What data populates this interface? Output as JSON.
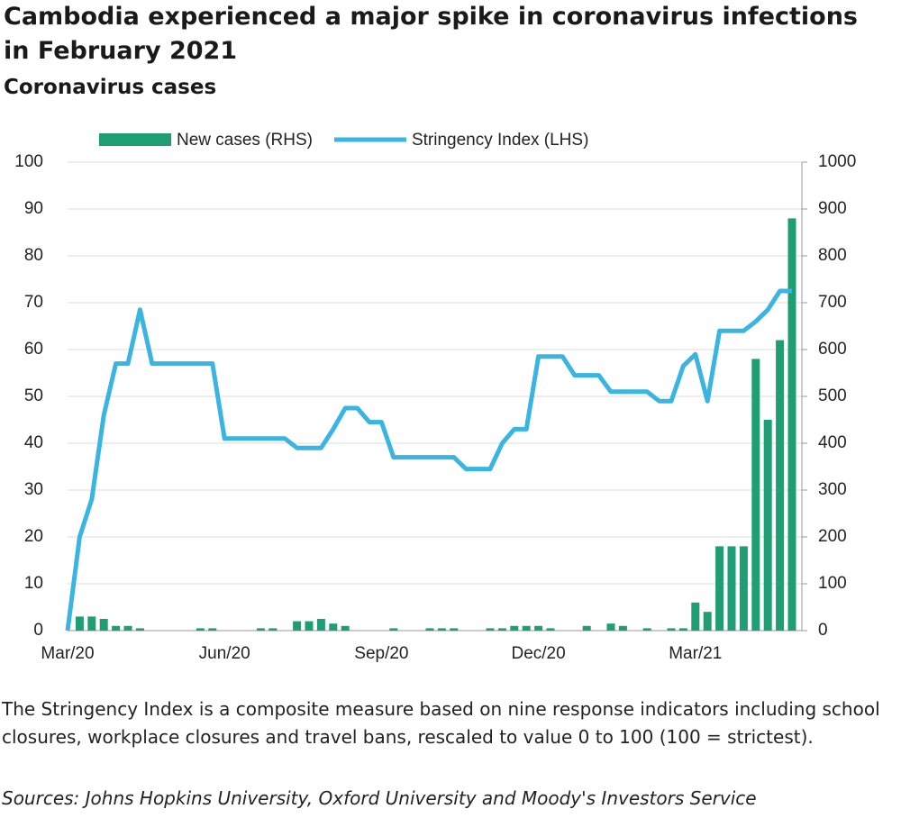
{
  "chart_data": {
    "type": "combo",
    "title": "Cambodia experienced a major spike in coronavirus infections in February 2021",
    "subtitle": "Coronavirus cases",
    "note": "The Stringency Index is a composite measure based on nine response indicators including school closures, workplace closures and travel bans, rescaled to value 0 to 100 (100 = strictest).",
    "source": "Sources: Johns Hopkins University, Oxford University and Moody's Investors Service",
    "categories": [
      "Mar/20",
      null,
      null,
      null,
      null,
      null,
      null,
      null,
      null,
      null,
      null,
      null,
      null,
      "Jun/20",
      null,
      null,
      null,
      null,
      null,
      null,
      null,
      null,
      null,
      null,
      null,
      null,
      "Sep/20",
      null,
      null,
      null,
      null,
      null,
      null,
      null,
      null,
      null,
      null,
      null,
      null,
      "Dec/20",
      null,
      null,
      null,
      null,
      null,
      null,
      null,
      null,
      null,
      null,
      null,
      null,
      "Mar/21",
      null,
      null,
      null,
      null,
      null,
      null,
      null,
      null
    ],
    "series": [
      {
        "name": "New cases (RHS)",
        "type": "bar",
        "axis": "y2",
        "color": "#1f9e73",
        "values": [
          0,
          30,
          30,
          25,
          10,
          10,
          5,
          0,
          0,
          0,
          0,
          5,
          5,
          0,
          0,
          0,
          5,
          5,
          0,
          20,
          20,
          25,
          15,
          10,
          0,
          0,
          0,
          5,
          0,
          0,
          5,
          5,
          5,
          0,
          0,
          5,
          5,
          10,
          10,
          10,
          5,
          0,
          0,
          10,
          0,
          15,
          10,
          0,
          5,
          0,
          5,
          5,
          60,
          40,
          180,
          180,
          180,
          580,
          450,
          620,
          880
        ]
      },
      {
        "name": "Stringency Index (LHS)",
        "type": "line",
        "axis": "y",
        "color": "#3ab4e0",
        "values": [
          0,
          20,
          28,
          46,
          57,
          57,
          68.5,
          57,
          57,
          57,
          57,
          57,
          57,
          41,
          41,
          41,
          41,
          41,
          41,
          39,
          39,
          39,
          43,
          47.5,
          47.5,
          44.5,
          44.5,
          37,
          37,
          37,
          37,
          37,
          37,
          34.5,
          34.5,
          34.5,
          40,
          43,
          43,
          58.5,
          58.5,
          58.5,
          54.5,
          54.5,
          54.5,
          51,
          51,
          51,
          51,
          49,
          49,
          56.5,
          59,
          49,
          64,
          64,
          64,
          66,
          68.5,
          72.5,
          72.5
        ]
      }
    ],
    "ylim": [
      0,
      100
    ],
    "yticks": [
      0,
      10,
      20,
      30,
      40,
      50,
      60,
      70,
      80,
      90,
      100
    ],
    "y2lim": [
      0,
      1000
    ],
    "y2ticks": [
      0,
      100,
      200,
      300,
      400,
      500,
      600,
      700,
      800,
      900,
      1000
    ],
    "grid": true,
    "legend": "top"
  }
}
